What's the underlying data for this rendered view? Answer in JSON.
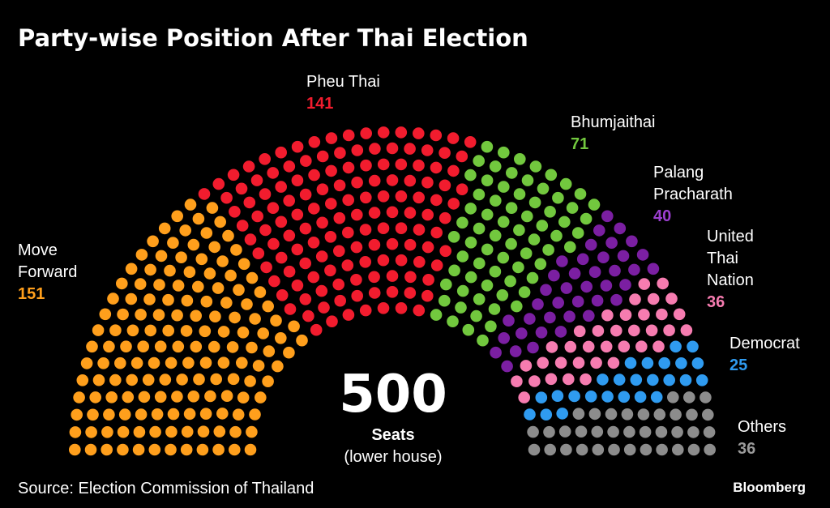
{
  "title": "Party-wise Position After Thai Election",
  "center": {
    "total": "500",
    "unit": "Seats",
    "note": "(lower house)"
  },
  "source": "Source: Election Commission of Thailand",
  "brand": "Bloomberg",
  "chart_data": {
    "type": "parliament",
    "total_seats": 500,
    "series": [
      {
        "name": "Move Forward",
        "lines": [
          "Move",
          "Forward"
        ],
        "value": 151,
        "color": "#FF9F1C"
      },
      {
        "name": "Pheu Thai",
        "lines": [
          "Pheu Thai"
        ],
        "value": 141,
        "color": "#F21C2E"
      },
      {
        "name": "Bhumjaithai",
        "lines": [
          "Bhumjaithai"
        ],
        "value": 71,
        "color": "#72C83E"
      },
      {
        "name": "Palang Pracharath",
        "lines": [
          "Palang",
          "Pracharath"
        ],
        "value": 40,
        "color": "#7B1FA2"
      },
      {
        "name": "United Thai Nation",
        "lines": [
          "United",
          "Thai",
          "Nation"
        ],
        "value": 36,
        "color": "#F67CB0"
      },
      {
        "name": "Democrat",
        "lines": [
          "Democrat"
        ],
        "value": 25,
        "color": "#2F9BF0"
      },
      {
        "name": "Others",
        "lines": [
          "Others"
        ],
        "value": 36,
        "color": "#8C8C8C"
      }
    ]
  }
}
